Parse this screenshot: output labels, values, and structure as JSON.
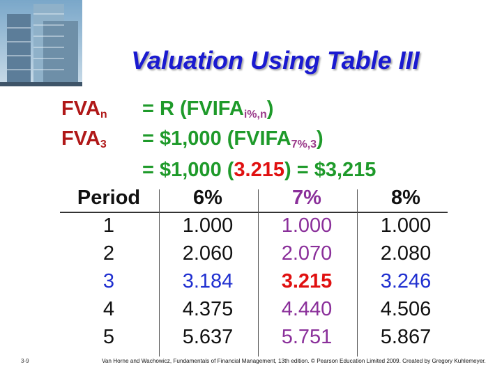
{
  "title": "Valuation Using Table III",
  "formula": {
    "line1": {
      "lhs": "FVA",
      "lhs_sub": "n",
      "rhs_start": "= R (FVIFA",
      "rhs_sub": "i%,n",
      "rhs_end": ")"
    },
    "line2": {
      "lhs": "FVA",
      "lhs_sub": "3",
      "rhs_start": "= $1,000 (FVIFA",
      "rhs_sub": "7%,3",
      "rhs_end": ")"
    },
    "line3": {
      "rhs_start": "= $1,000 (",
      "factor": "3.215",
      "rhs_end": ") = $3,215"
    }
  },
  "table": {
    "header": [
      "Period",
      "6%",
      "7%",
      "8%"
    ],
    "rows": [
      [
        "1",
        "1.000",
        "1.000",
        "1.000"
      ],
      [
        "2",
        "2.060",
        "2.070",
        "2.080"
      ],
      [
        "3",
        "3.184",
        "3.215",
        "3.246"
      ],
      [
        "4",
        "4.375",
        "4.440",
        "4.506"
      ],
      [
        "5",
        "5.637",
        "5.751",
        "5.867"
      ]
    ]
  },
  "footer": {
    "page": "3-9",
    "citation": "Van Horne and Wachowicz, Fundamentals of Financial Management, 13th edition. © Pearson Education Limited 2009. Created by Gregory Kuhlemeyer."
  }
}
